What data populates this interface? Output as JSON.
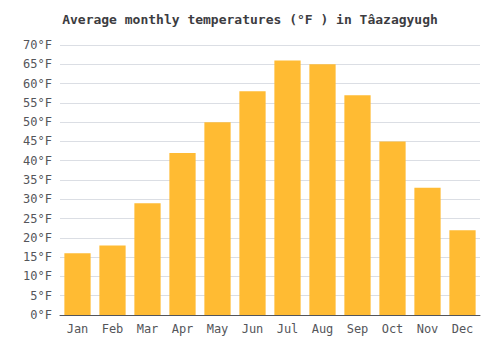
{
  "chart_data": {
    "type": "bar",
    "title": "Average monthly temperatures (°F ) in Tâ​azagyugh",
    "categories": [
      "Jan",
      "Feb",
      "Mar",
      "Apr",
      "May",
      "Jun",
      "Jul",
      "Aug",
      "Sep",
      "Oct",
      "Nov",
      "Dec"
    ],
    "values": [
      16,
      18,
      29,
      42,
      50,
      58,
      66,
      65,
      57,
      45,
      33,
      22
    ],
    "color": "#FFBB33",
    "ylim": [
      0,
      70
    ],
    "yticks": [
      {
        "value": 0,
        "label": "0°F"
      },
      {
        "value": 5,
        "label": "5°F"
      },
      {
        "value": 10,
        "label": "10°F"
      },
      {
        "value": 15,
        "label": "15°F"
      },
      {
        "value": 20,
        "label": "20°F"
      },
      {
        "value": 25,
        "label": "25°F"
      },
      {
        "value": 30,
        "label": "30°F"
      },
      {
        "value": 35,
        "label": "35°F"
      },
      {
        "value": 40,
        "label": "40°F"
      },
      {
        "value": 45,
        "label": "45°F"
      },
      {
        "value": 50,
        "label": "50°F"
      },
      {
        "value": 55,
        "label": "55°F"
      },
      {
        "value": 60,
        "label": "60°F"
      },
      {
        "value": 65,
        "label": "65°F"
      },
      {
        "value": 70,
        "label": "70°F"
      }
    ],
    "grid": true
  }
}
